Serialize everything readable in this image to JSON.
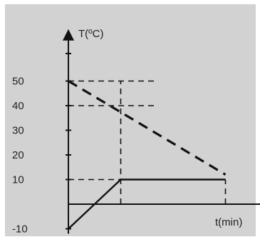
{
  "chart_data": {
    "type": "line",
    "ylabel": "T(ºC)",
    "xlabel": "t(min)",
    "y_ticks": [
      "50",
      "40",
      "30",
      "20",
      "10",
      "-10"
    ],
    "y_tick_values": [
      50,
      40,
      30,
      20,
      10,
      -10
    ],
    "ylim": [
      -12,
      72
    ],
    "xlim": [
      0,
      7
    ],
    "grid": false,
    "series": [
      {
        "style": "solid",
        "points": [
          [
            0,
            -10
          ],
          [
            1.5,
            10
          ],
          [
            4.5,
            10
          ]
        ]
      },
      {
        "style": "dashed",
        "points": [
          [
            0,
            50
          ],
          [
            4.5,
            12
          ]
        ]
      }
    ],
    "reference_lines": [
      {
        "type": "horizontal",
        "y": 50,
        "x_range": [
          0,
          2.5
        ]
      },
      {
        "type": "horizontal",
        "y": 40,
        "x_range": [
          0,
          2.5
        ]
      },
      {
        "type": "horizontal",
        "y": 10,
        "x_range": [
          0,
          1.5
        ]
      },
      {
        "type": "vertical",
        "x": 1.5,
        "y_range": [
          0,
          50
        ]
      },
      {
        "type": "vertical",
        "x": 4.5,
        "y_range": [
          0,
          10
        ]
      }
    ]
  },
  "colors": {
    "panel_background": "#d2d2d2",
    "page_background": "#ffffff",
    "ink": "#111111"
  }
}
